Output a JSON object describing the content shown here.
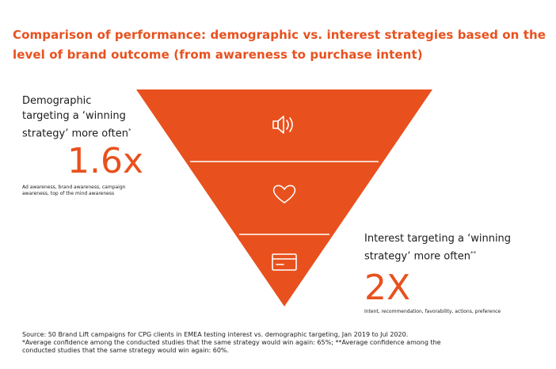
{
  "title": "Comparison of performance: demographic vs. interest strategies based on the level of brand outcome (from awareness to purchase intent)",
  "colors": {
    "accent": "#e8511e",
    "text": "#1c1c1c",
    "background": "#ffffff",
    "icon": "#ffffff"
  },
  "funnel": {
    "levels": [
      {
        "icon": "speaker-icon"
      },
      {
        "icon": "heart-icon"
      },
      {
        "icon": "credit-card-icon"
      }
    ]
  },
  "demographic": {
    "heading_line1": "Demographic",
    "heading_line2": "targeting a ‘winning",
    "heading_line3": "strategy’ more often",
    "heading_marker": "*",
    "multiplier": "1.6x",
    "note": "Ad awareness, brand awareness, campaign awareness, top of the mind awareness"
  },
  "interest": {
    "heading_line1": "Interest targeting a ‘winning",
    "heading_line2": "strategy’ more often",
    "heading_marker": "**",
    "multiplier": "2X",
    "note": "Intent, recommendation, favorability, actions, preference"
  },
  "footer": {
    "source": "Source: 50 Brand Lift campaigns for CPG clients in EMEA testing interest vs. demographic targeting, Jan 2019 to Jul 2020.",
    "footnote_1": "*Average confidence among the conducted studies that the same strategy would win again: 65%; **Average confidence among the",
    "footnote_2": "conducted studies that the same strategy would win again: 60%."
  }
}
